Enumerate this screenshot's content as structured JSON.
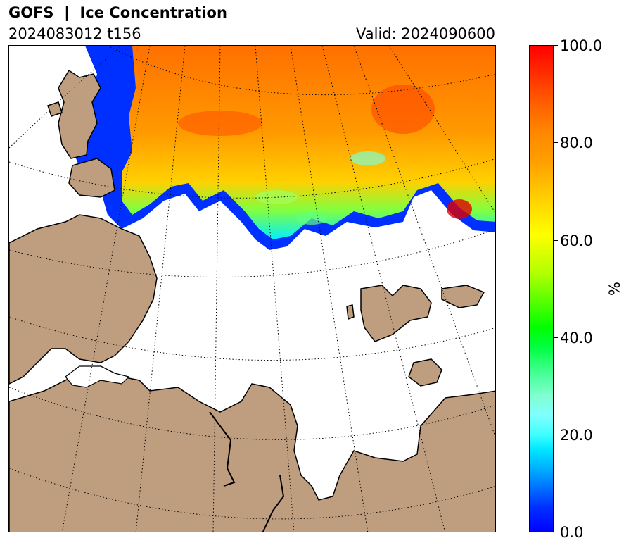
{
  "header": {
    "title": "GOFS  |  Ice Concentration",
    "run": "2024083012 t156",
    "valid": "Valid: 2024090600"
  },
  "map": {
    "land_color": "#bf9e80",
    "ocean_color": "#ffffff",
    "graticule_style": "dotted"
  },
  "colorbar": {
    "label": "%",
    "ticks": [
      "100.0",
      "80.0",
      "60.0",
      "40.0",
      "20.0",
      "0.0"
    ],
    "range": [
      0,
      100
    ],
    "colors": [
      "#0000ff",
      "#00ffff",
      "#00ff00",
      "#ffff00",
      "#ff8800",
      "#ff0000"
    ]
  }
}
